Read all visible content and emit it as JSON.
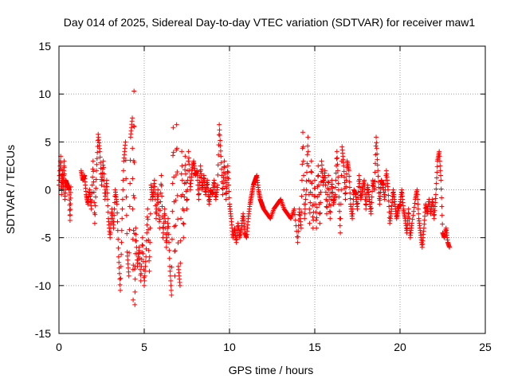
{
  "chart_data": {
    "type": "scatter",
    "title": "Day 014 of 2025, Sidereal Day-to-day VTEC variation (SDTVAR) for receiver maw1",
    "xlabel": "GPS time / hours",
    "ylabel": "SDTVAR / TECUs",
    "xlim": [
      0,
      25
    ],
    "ylim": [
      -15,
      15
    ],
    "x_ticks": [
      "0",
      "5",
      "10",
      "15",
      "20",
      "25"
    ],
    "y_ticks": [
      "-15",
      "-10",
      "-5",
      "0",
      "5",
      "10",
      "15"
    ],
    "grid": true,
    "marker": "+",
    "color": "#ff0000",
    "series": [
      {
        "name": "SDTVAR",
        "points": [
          [
            0.0,
            0.5
          ],
          [
            0.1,
            3.5
          ],
          [
            0.15,
            -0.5
          ],
          [
            0.2,
            2.0
          ],
          [
            0.25,
            0.0
          ],
          [
            0.3,
            3.0
          ],
          [
            0.35,
            -1.0
          ],
          [
            0.4,
            1.0
          ],
          [
            0.5,
            0.5
          ],
          [
            0.6,
            0.0
          ],
          [
            0.65,
            -3.2
          ],
          [
            0.7,
            0.3
          ],
          [
            1.3,
            2.0
          ],
          [
            1.4,
            1.0
          ],
          [
            1.5,
            1.5
          ],
          [
            1.6,
            -0.5
          ],
          [
            1.7,
            -1.5
          ],
          [
            1.8,
            0.0
          ],
          [
            1.9,
            -2.0
          ],
          [
            2.0,
            3.0
          ],
          [
            2.1,
            -3.5
          ],
          [
            2.2,
            2.0
          ],
          [
            2.3,
            5.8
          ],
          [
            2.4,
            4.0
          ],
          [
            2.5,
            0.5
          ],
          [
            2.6,
            3.0
          ],
          [
            2.7,
            -1.0
          ],
          [
            2.8,
            1.0
          ],
          [
            2.9,
            -3.0
          ],
          [
            3.0,
            -5.0
          ],
          [
            3.1,
            -2.0
          ],
          [
            3.2,
            -4.0
          ],
          [
            3.3,
            0.0
          ],
          [
            3.4,
            -1.5
          ],
          [
            3.5,
            -7.0
          ],
          [
            3.6,
            -10.5
          ],
          [
            3.7,
            -3.0
          ],
          [
            3.8,
            3.0
          ],
          [
            3.9,
            5.0
          ],
          [
            4.0,
            -6.5
          ],
          [
            4.1,
            -9.0
          ],
          [
            4.2,
            5.5
          ],
          [
            4.3,
            7.5
          ],
          [
            4.35,
            -11.5
          ],
          [
            4.4,
            10.3
          ],
          [
            4.45,
            -12.0
          ],
          [
            4.5,
            -4.0
          ],
          [
            4.6,
            -8.0
          ],
          [
            4.7,
            -6.0
          ],
          [
            4.8,
            -9.5
          ],
          [
            4.9,
            -5.0
          ],
          [
            5.0,
            -10.0
          ],
          [
            5.1,
            -7.0
          ],
          [
            5.2,
            -2.0
          ],
          [
            5.3,
            -8.5
          ],
          [
            5.4,
            0.5
          ],
          [
            5.5,
            -1.0
          ],
          [
            5.6,
            1.0
          ],
          [
            5.7,
            -3.0
          ],
          [
            5.8,
            0.0
          ],
          [
            5.9,
            -4.0
          ],
          [
            6.0,
            1.5
          ],
          [
            6.1,
            -5.0
          ],
          [
            6.2,
            -2.0
          ],
          [
            6.3,
            -6.0
          ],
          [
            6.4,
            -3.0
          ],
          [
            6.5,
            -8.0
          ],
          [
            6.6,
            -11.0
          ],
          [
            6.7,
            6.5
          ],
          [
            6.8,
            -9.0
          ],
          [
            6.9,
            6.8
          ],
          [
            7.0,
            -8.0
          ],
          [
            7.1,
            -10.0
          ],
          [
            7.2,
            4.0
          ],
          [
            7.3,
            -5.0
          ],
          [
            7.4,
            3.5
          ],
          [
            7.5,
            -2.0
          ],
          [
            7.6,
            4.0
          ],
          [
            7.7,
            0.0
          ],
          [
            7.8,
            2.0
          ],
          [
            7.9,
            3.0
          ],
          [
            8.0,
            1.5
          ],
          [
            8.1,
            2.0
          ],
          [
            8.2,
            -1.0
          ],
          [
            8.3,
            2.5
          ],
          [
            8.4,
            0.0
          ],
          [
            8.5,
            1.5
          ],
          [
            8.6,
            -0.5
          ],
          [
            8.7,
            1.0
          ],
          [
            8.8,
            -1.5
          ],
          [
            8.9,
            0.0
          ],
          [
            9.0,
            -0.5
          ],
          [
            9.1,
            1.0
          ],
          [
            9.2,
            -1.0
          ],
          [
            9.3,
            0.5
          ],
          [
            9.4,
            6.8
          ],
          [
            9.5,
            3.5
          ],
          [
            9.6,
            -0.5
          ],
          [
            9.7,
            3.0
          ],
          [
            9.8,
            -1.0
          ],
          [
            9.9,
            2.5
          ],
          [
            10.0,
            -1.5
          ],
          [
            10.1,
            -3.0
          ],
          [
            10.2,
            -5.0
          ],
          [
            10.3,
            -4.0
          ],
          [
            10.4,
            -5.5
          ],
          [
            10.5,
            -3.5
          ],
          [
            10.6,
            -5.0
          ],
          [
            10.7,
            -4.0
          ],
          [
            10.8,
            -2.5
          ],
          [
            10.9,
            -4.5
          ],
          [
            11.0,
            -5.0
          ],
          [
            11.1,
            -3.0
          ],
          [
            11.2,
            -1.5
          ],
          [
            11.3,
            -0.5
          ],
          [
            11.4,
            0.5
          ],
          [
            11.5,
            1.0
          ],
          [
            11.6,
            1.5
          ],
          [
            11.7,
            0.0
          ],
          [
            11.8,
            -1.0
          ],
          [
            11.9,
            -1.5
          ],
          [
            12.0,
            -2.0
          ],
          [
            12.2,
            -2.5
          ],
          [
            12.4,
            -3.0
          ],
          [
            12.6,
            -2.0
          ],
          [
            12.8,
            -1.5
          ],
          [
            13.0,
            -1.0
          ],
          [
            13.2,
            -2.0
          ],
          [
            13.4,
            -2.5
          ],
          [
            13.6,
            -3.0
          ],
          [
            13.8,
            -2.0
          ],
          [
            14.0,
            -5.5
          ],
          [
            14.1,
            -2.0
          ],
          [
            14.2,
            -4.0
          ],
          [
            14.3,
            6.0
          ],
          [
            14.4,
            -3.0
          ],
          [
            14.5,
            0.0
          ],
          [
            14.6,
            5.5
          ],
          [
            14.7,
            -3.5
          ],
          [
            14.8,
            3.0
          ],
          [
            14.9,
            -4.0
          ],
          [
            15.0,
            1.0
          ],
          [
            15.1,
            -4.0
          ],
          [
            15.2,
            2.5
          ],
          [
            15.3,
            -3.5
          ],
          [
            15.4,
            3.0
          ],
          [
            15.5,
            0.5
          ],
          [
            15.6,
            2.0
          ],
          [
            15.7,
            -2.5
          ],
          [
            15.8,
            1.5
          ],
          [
            15.9,
            -3.0
          ],
          [
            16.0,
            1.0
          ],
          [
            16.1,
            -1.5
          ],
          [
            16.2,
            -0.5
          ],
          [
            16.3,
            4.0
          ],
          [
            16.4,
            0.0
          ],
          [
            16.5,
            -4.5
          ],
          [
            16.6,
            4.5
          ],
          [
            16.7,
            2.5
          ],
          [
            16.8,
            -1.0
          ],
          [
            16.9,
            3.0
          ],
          [
            17.0,
            2.0
          ],
          [
            17.1,
            -1.5
          ],
          [
            17.2,
            -3.0
          ],
          [
            17.3,
            0.0
          ],
          [
            17.4,
            -0.5
          ],
          [
            17.5,
            -2.0
          ],
          [
            17.6,
            1.5
          ],
          [
            17.7,
            -1.0
          ],
          [
            17.8,
            0.0
          ],
          [
            17.9,
            1.0
          ],
          [
            18.0,
            -2.0
          ],
          [
            18.1,
            0.5
          ],
          [
            18.2,
            -1.0
          ],
          [
            18.3,
            -2.5
          ],
          [
            18.4,
            1.0
          ],
          [
            18.5,
            0.0
          ],
          [
            18.6,
            5.5
          ],
          [
            18.7,
            2.0
          ],
          [
            18.8,
            -1.5
          ],
          [
            18.9,
            1.0
          ],
          [
            19.0,
            0.5
          ],
          [
            19.1,
            -1.0
          ],
          [
            19.2,
            2.0
          ],
          [
            19.3,
            0.0
          ],
          [
            19.4,
            -3.5
          ],
          [
            19.5,
            -2.0
          ],
          [
            19.6,
            0.0
          ],
          [
            19.7,
            -1.5
          ],
          [
            19.8,
            -3.0
          ],
          [
            19.9,
            -2.0
          ],
          [
            20.0,
            -1.5
          ],
          [
            20.1,
            0.0
          ],
          [
            20.2,
            -2.0
          ],
          [
            20.3,
            -3.0
          ],
          [
            20.4,
            -4.5
          ],
          [
            20.5,
            -2.0
          ],
          [
            20.6,
            -5.0
          ],
          [
            20.7,
            -3.5
          ],
          [
            20.9,
            -1.0
          ],
          [
            21.0,
            0.0
          ],
          [
            21.1,
            -3.0
          ],
          [
            21.2,
            -4.5
          ],
          [
            21.3,
            -6.0
          ],
          [
            21.4,
            -4.0
          ],
          [
            21.5,
            -1.5
          ],
          [
            21.6,
            -2.5
          ],
          [
            21.7,
            -1.0
          ],
          [
            21.8,
            -2.5
          ],
          [
            21.9,
            -1.0
          ],
          [
            22.0,
            -3.0
          ],
          [
            22.1,
            -0.5
          ],
          [
            22.2,
            3.0
          ],
          [
            22.3,
            4.0
          ],
          [
            22.4,
            1.0
          ],
          [
            22.5,
            -4.5
          ],
          [
            22.6,
            -5.0
          ],
          [
            22.7,
            -4.0
          ],
          [
            22.8,
            -5.5
          ],
          [
            22.9,
            -6.0
          ]
        ]
      }
    ]
  }
}
